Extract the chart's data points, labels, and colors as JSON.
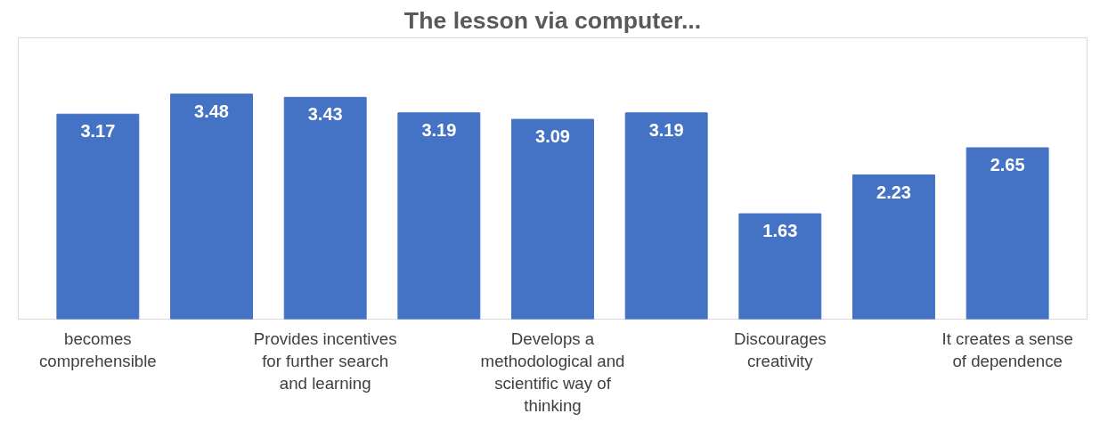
{
  "chart_data": {
    "type": "bar",
    "title": "The lesson via computer...",
    "categories": [
      "becomes comprehensible",
      null,
      "Provides incentives for further search and learning",
      null,
      "Develops a methodological and scientific way of thinking",
      null,
      "Discourages creativity",
      null,
      "It creates a sense of dependence"
    ],
    "values": [
      3.17,
      3.48,
      3.43,
      3.19,
      3.09,
      3.19,
      1.63,
      2.23,
      2.65
    ],
    "color": "#4472c4",
    "tick_labels": "x",
    "data_labels": true,
    "grid": false
  }
}
